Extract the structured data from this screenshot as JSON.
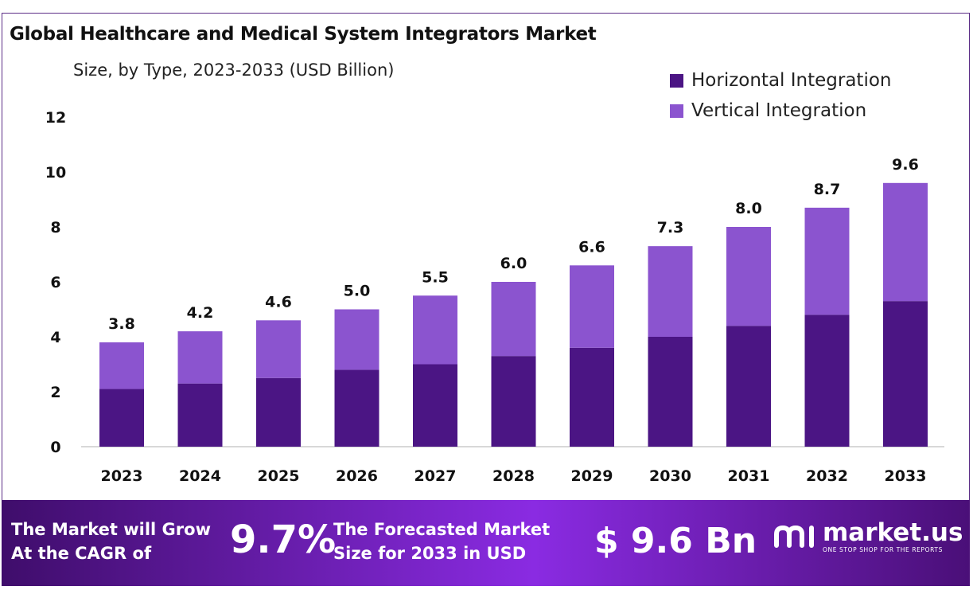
{
  "chart_data": {
    "type": "bar",
    "stacked": true,
    "title": "Global Healthcare and Medical System Integrators Market",
    "subtitle": "Size, by Type, 2023-2033 (USD Billion)",
    "xlabel": "",
    "ylabel": "",
    "categories": [
      "2023",
      "2024",
      "2025",
      "2026",
      "2027",
      "2028",
      "2029",
      "2030",
      "2031",
      "2032",
      "2033"
    ],
    "series": [
      {
        "name": "Horizontal Integration",
        "color": "#4b1584",
        "values": [
          2.1,
          2.3,
          2.5,
          2.8,
          3.0,
          3.3,
          3.6,
          4.0,
          4.4,
          4.8,
          5.3
        ]
      },
      {
        "name": "Vertical Integration",
        "color": "#8b54cf",
        "values": [
          1.7,
          1.9,
          2.1,
          2.2,
          2.5,
          2.7,
          3.0,
          3.3,
          3.6,
          3.9,
          4.3
        ]
      }
    ],
    "totals": [
      "3.8",
      "4.2",
      "4.6",
      "5.0",
      "5.5",
      "6.0",
      "6.6",
      "7.3",
      "8.0",
      "8.7",
      "9.6"
    ],
    "yticks": [
      "0",
      "2",
      "4",
      "6",
      "8",
      "10",
      "12"
    ],
    "ylim": [
      0,
      12
    ],
    "grid": false,
    "legend": "top-right"
  },
  "banner": {
    "cagr_label_line1": "The Market will Grow",
    "cagr_label_line2": "At the CAGR of",
    "cagr_value": "9.7%",
    "forecast_label_line1": "The Forecasted Market",
    "forecast_label_line2": "Size for 2033 in USD",
    "forecast_value": "$ 9.6 Bn",
    "logo_name": "market.us",
    "logo_tagline": "ONE STOP SHOP FOR THE REPORTS"
  }
}
